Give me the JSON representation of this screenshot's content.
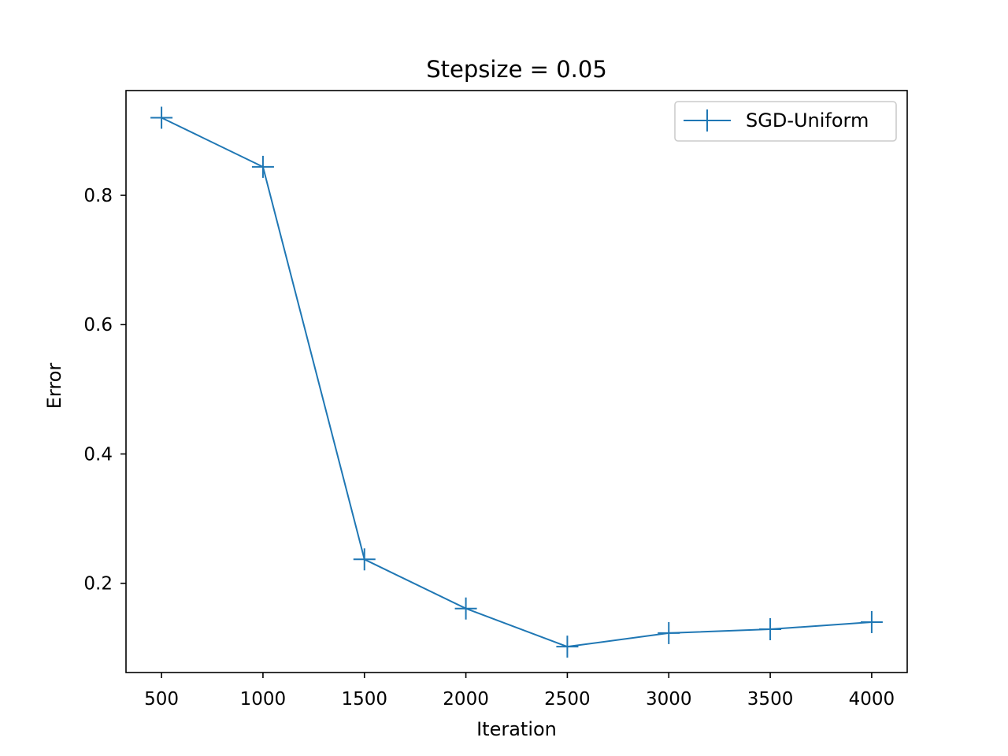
{
  "chart_data": {
    "type": "line",
    "title": "Stepsize = 0.05",
    "xlabel": "Iteration",
    "ylabel": "Error",
    "xlim": [
      325,
      4175
    ],
    "ylim": [
      0.062,
      0.962
    ],
    "xticks": [
      500,
      1000,
      1500,
      2000,
      2500,
      3000,
      3500,
      4000
    ],
    "xtick_labels": [
      "500",
      "1000",
      "1500",
      "2000",
      "2500",
      "3000",
      "3500",
      "4000"
    ],
    "yticks": [
      0.2,
      0.4,
      0.6,
      0.8
    ],
    "ytick_labels": [
      "0.2",
      "0.4",
      "0.6",
      "0.8"
    ],
    "grid": false,
    "legend_position": "top-right",
    "series": [
      {
        "name": "SGD-Uniform",
        "color": "#1f77b4",
        "marker": "plus",
        "x": [
          500,
          1000,
          1500,
          2000,
          2500,
          3000,
          3500,
          4000
        ],
        "y": [
          0.92,
          0.844,
          0.237,
          0.161,
          0.102,
          0.123,
          0.129,
          0.14
        ]
      }
    ]
  }
}
